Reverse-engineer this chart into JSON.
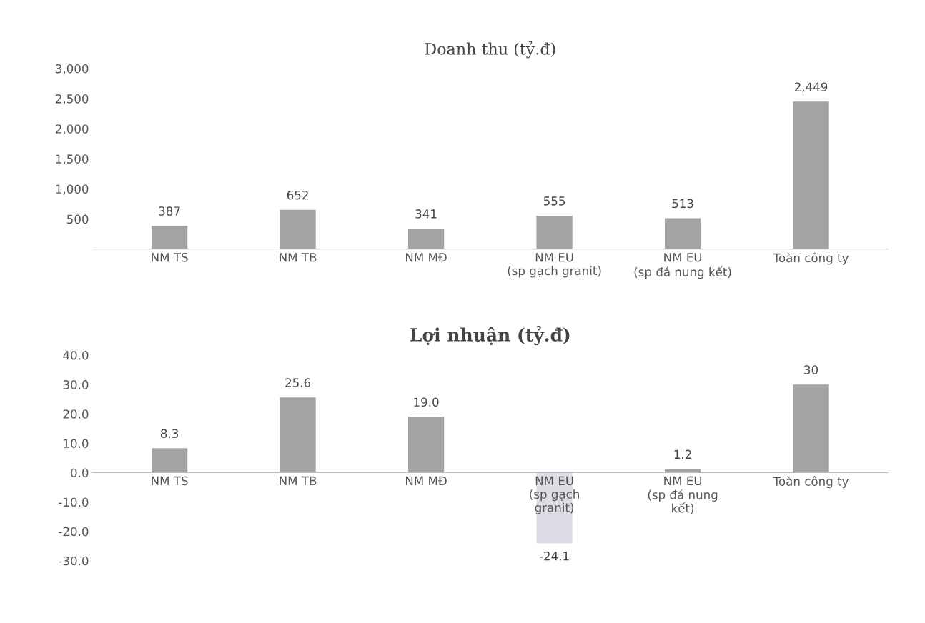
{
  "chart_data": [
    {
      "type": "bar",
      "title": "Doanh thu (tỷ.đ)",
      "categories": [
        "NM TS",
        "NM TB",
        "NM MĐ",
        "NM EU\n(sp gạch granit)",
        "NM EU\n(sp đá nung kết)",
        "Toàn công ty"
      ],
      "values": [
        387,
        652,
        341,
        555,
        513,
        2449
      ],
      "value_labels": [
        "387",
        "652",
        "341",
        "555",
        "513",
        "2,449"
      ],
      "color": "#a3a3a3",
      "ylim": [
        0,
        3000
      ],
      "yticks": [
        {
          "value": 500,
          "label": "500"
        },
        {
          "value": 1000,
          "label": "1,000"
        },
        {
          "value": 1500,
          "label": "1,500"
        },
        {
          "value": 2000,
          "label": "2,000"
        },
        {
          "value": 2500,
          "label": "2,500"
        },
        {
          "value": 3000,
          "label": "3,000"
        }
      ],
      "grid": false,
      "legend": false
    },
    {
      "type": "bar",
      "title": "Lợi nhuận (tỷ.đ)",
      "categories": [
        "NM TS",
        "NM TB",
        "NM MĐ",
        "NM EU\n(sp gạch\ngranit)",
        "NM EU\n(sp đá nung\nkết)",
        "Toàn công ty"
      ],
      "values": [
        8.3,
        25.6,
        19.0,
        -24.1,
        1.2,
        30
      ],
      "value_labels": [
        "8.3",
        "25.6",
        "19.0",
        "-24.1",
        "1.2",
        "30"
      ],
      "colors": [
        "#a3a3a3",
        "#a3a3a3",
        "#a3a3a3",
        "#dcdce4",
        "#a3a3a3",
        "#a3a3a3"
      ],
      "ylim": [
        -30,
        40
      ],
      "yticks": [
        {
          "value": -30,
          "label": "-30.0"
        },
        {
          "value": -20,
          "label": "-20.0"
        },
        {
          "value": -10,
          "label": "-10.0"
        },
        {
          "value": 0,
          "label": "0.0"
        },
        {
          "value": 10,
          "label": "10.0"
        },
        {
          "value": 20,
          "label": "20.0"
        },
        {
          "value": 30,
          "label": "30.0"
        },
        {
          "value": 40,
          "label": "40.0"
        }
      ],
      "grid": false,
      "legend": false
    }
  ]
}
